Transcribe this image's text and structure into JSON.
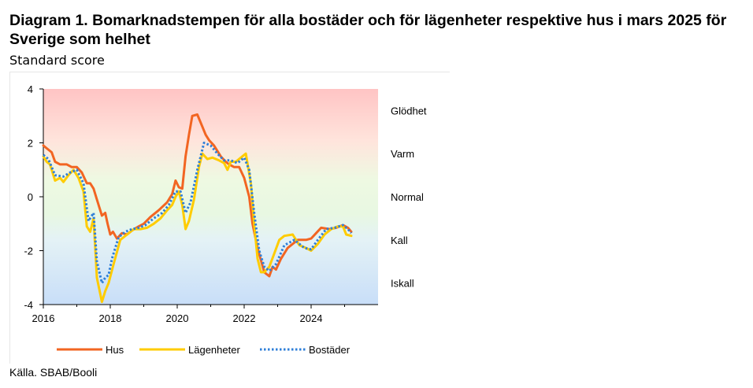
{
  "title": "Diagram 1. Bomarknadstempen för alla bostäder och för lägenheter respektive hus i mars 2025 för Sverige som helhet",
  "subtitle": "Standard score",
  "source": "Källa. SBAB/Booli",
  "chart_data": {
    "type": "line",
    "ylim": [
      -4,
      4
    ],
    "xlim": [
      2016,
      2026
    ],
    "y_ticks": [
      "4",
      "2",
      "0",
      "-2",
      "-4"
    ],
    "x_ticks": [
      "2016",
      "2018",
      "2020",
      "2022",
      "2024"
    ],
    "zones": [
      "Glödhet",
      "Varm",
      "Normal",
      "Kall",
      "Iskall"
    ],
    "legend_position": "bottom",
    "series": [
      {
        "name": "Hus",
        "color": "#f26522",
        "style": "solid",
        "x": [
          2016.0,
          2016.1,
          2016.25,
          2016.35,
          2016.5,
          2016.7,
          2016.85,
          2017.0,
          2017.15,
          2017.3,
          2017.4,
          2017.5,
          2017.6,
          2017.75,
          2017.85,
          2017.92,
          2018.0,
          2018.08,
          2018.2,
          2018.35,
          2018.5,
          2018.65,
          2018.85,
          2019.0,
          2019.2,
          2019.45,
          2019.7,
          2019.85,
          2019.95,
          2020.05,
          2020.15,
          2020.25,
          2020.35,
          2020.45,
          2020.6,
          2020.75,
          2020.85,
          2020.95,
          2021.1,
          2021.3,
          2021.45,
          2021.55,
          2021.7,
          2021.85,
          2022.0,
          2022.15,
          2022.25,
          2022.4,
          2022.6,
          2022.75,
          2022.85,
          2022.95,
          2023.1,
          2023.3,
          2023.6,
          2023.85,
          2024.0,
          2024.15,
          2024.3,
          2024.55,
          2024.75,
          2024.95,
          2025.1,
          2025.2
        ],
        "values": [
          1.9,
          1.8,
          1.65,
          1.3,
          1.2,
          1.2,
          1.1,
          1.1,
          0.9,
          0.5,
          0.5,
          0.3,
          -0.1,
          -0.7,
          -0.6,
          -1.0,
          -1.4,
          -1.3,
          -1.55,
          -1.35,
          -1.4,
          -1.25,
          -1.1,
          -1.0,
          -0.75,
          -0.5,
          -0.2,
          0.1,
          0.6,
          0.35,
          0.3,
          1.5,
          2.3,
          3.0,
          3.05,
          2.6,
          2.3,
          2.1,
          1.9,
          1.5,
          1.3,
          1.2,
          1.1,
          1.1,
          0.7,
          0.0,
          -1.0,
          -1.9,
          -2.8,
          -2.95,
          -2.6,
          -2.7,
          -2.3,
          -1.9,
          -1.6,
          -1.6,
          -1.55,
          -1.35,
          -1.15,
          -1.2,
          -1.15,
          -1.05,
          -1.15,
          -1.3
        ]
      },
      {
        "name": "Lägenheter",
        "color": "#ffcc00",
        "style": "solid",
        "x": [
          2016.0,
          2016.1,
          2016.2,
          2016.35,
          2016.5,
          2016.6,
          2016.75,
          2016.9,
          2017.05,
          2017.2,
          2017.3,
          2017.4,
          2017.5,
          2017.6,
          2017.75,
          2017.85,
          2017.95,
          2018.1,
          2018.3,
          2018.5,
          2018.7,
          2018.9,
          2019.1,
          2019.3,
          2019.5,
          2019.7,
          2019.85,
          2019.95,
          2020.05,
          2020.15,
          2020.25,
          2020.35,
          2020.5,
          2020.65,
          2020.75,
          2020.9,
          2021.05,
          2021.25,
          2021.4,
          2021.5,
          2021.6,
          2021.75,
          2021.95,
          2022.05,
          2022.2,
          2022.3,
          2022.4,
          2022.5,
          2022.6,
          2022.75,
          2022.9,
          2023.05,
          2023.2,
          2023.45,
          2023.65,
          2023.85,
          2024.0,
          2024.2,
          2024.4,
          2024.6,
          2024.8,
          2024.95,
          2025.05,
          2025.2
        ],
        "values": [
          1.5,
          1.3,
          1.2,
          0.6,
          0.7,
          0.55,
          0.8,
          1.0,
          0.7,
          0.2,
          -1.1,
          -1.3,
          -0.8,
          -3.0,
          -3.9,
          -3.5,
          -3.2,
          -2.5,
          -1.6,
          -1.4,
          -1.2,
          -1.2,
          -1.15,
          -1.0,
          -0.8,
          -0.5,
          -0.3,
          0.0,
          0.2,
          -0.3,
          -1.2,
          -0.9,
          -0.1,
          1.1,
          1.6,
          1.4,
          1.45,
          1.35,
          1.25,
          1.0,
          1.3,
          1.3,
          1.5,
          1.6,
          0.5,
          -1.0,
          -2.3,
          -2.8,
          -2.8,
          -2.6,
          -2.1,
          -1.6,
          -1.45,
          -1.4,
          -1.8,
          -1.9,
          -2.0,
          -1.75,
          -1.4,
          -1.2,
          -1.1,
          -1.1,
          -1.4,
          -1.45
        ]
      },
      {
        "name": "Bostäder",
        "color": "#2f7fd8",
        "style": "dotted",
        "x": [
          2016.0,
          2016.15,
          2016.35,
          2016.6,
          2016.8,
          2017.0,
          2017.2,
          2017.35,
          2017.5,
          2017.6,
          2017.75,
          2017.85,
          2017.95,
          2018.05,
          2018.25,
          2018.45,
          2018.65,
          2018.85,
          2019.05,
          2019.3,
          2019.55,
          2019.75,
          2019.95,
          2020.1,
          2020.25,
          2020.4,
          2020.6,
          2020.8,
          2021.0,
          2021.2,
          2021.4,
          2021.6,
          2021.8,
          2022.0,
          2022.15,
          2022.3,
          2022.45,
          2022.6,
          2022.75,
          2022.95,
          2023.2,
          2023.5,
          2023.8,
          2024.0,
          2024.2,
          2024.45,
          2024.7,
          2024.95,
          2025.1,
          2025.2
        ],
        "values": [
          1.55,
          1.4,
          0.8,
          0.75,
          0.9,
          1.0,
          0.5,
          -0.9,
          -0.6,
          -2.4,
          -3.2,
          -3.0,
          -2.9,
          -2.3,
          -1.5,
          -1.3,
          -1.2,
          -1.15,
          -1.05,
          -0.8,
          -0.6,
          -0.3,
          0.2,
          0.2,
          -0.6,
          -0.2,
          1.0,
          2.0,
          1.9,
          1.6,
          1.35,
          1.35,
          1.25,
          1.45,
          1.0,
          -0.6,
          -2.0,
          -2.6,
          -2.75,
          -2.5,
          -1.8,
          -1.6,
          -1.9,
          -1.95,
          -1.6,
          -1.2,
          -1.15,
          -1.05,
          -1.2,
          -1.35
        ]
      }
    ]
  }
}
